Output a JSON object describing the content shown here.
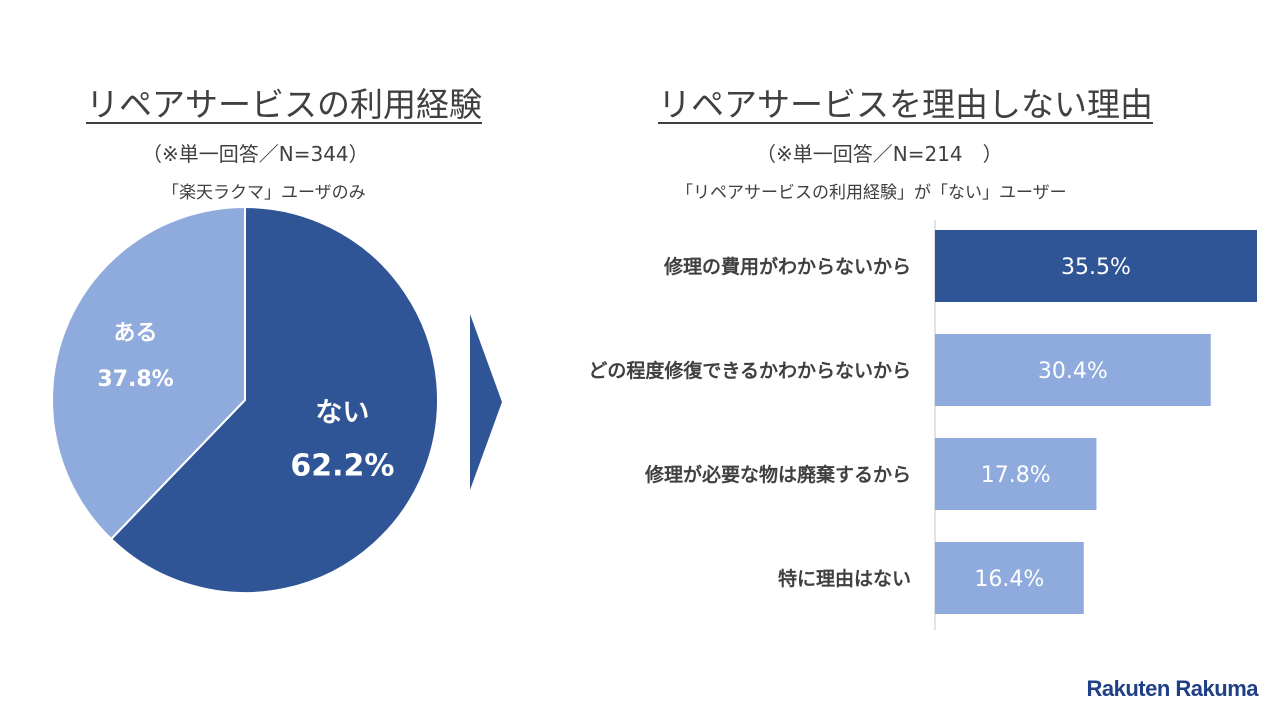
{
  "left": {
    "title": "リペアサービスの利用経験",
    "subtitle": "（※単一回答／N=344）",
    "note": "「楽天ラクマ」ユーザのみ"
  },
  "right": {
    "title": "リペアサービスを理由しない理由",
    "subtitle": "（※単一回答／N=214　）",
    "note": "「リペアサービスの利用経験」が「ない」ユーザー"
  },
  "logo": "Rakuten Rakuma",
  "colors": {
    "dark": "#2f5597",
    "light": "#8faadc",
    "text": "#404040",
    "axis": "#d9d9d9"
  },
  "chart_data": [
    {
      "type": "pie",
      "slices": [
        {
          "label": "ない",
          "value": 62.2,
          "value_label": "62.2%",
          "color": "#2f5597"
        },
        {
          "label": "ある",
          "value": 37.8,
          "value_label": "37.8%",
          "color": "#8faadc"
        }
      ]
    },
    {
      "type": "bar",
      "orientation": "horizontal",
      "categories": [
        "修理の費用がわからないから",
        "どの程度修復できるかわからないから",
        "修理が必要な物は廃棄するから",
        "特に理由はない"
      ],
      "values": [
        35.5,
        30.4,
        17.8,
        16.4
      ],
      "value_labels": [
        "35.5%",
        "30.4%",
        "17.8%",
        "16.4%"
      ],
      "colors": [
        "#2f5597",
        "#8faadc",
        "#8faadc",
        "#8faadc"
      ]
    }
  ]
}
